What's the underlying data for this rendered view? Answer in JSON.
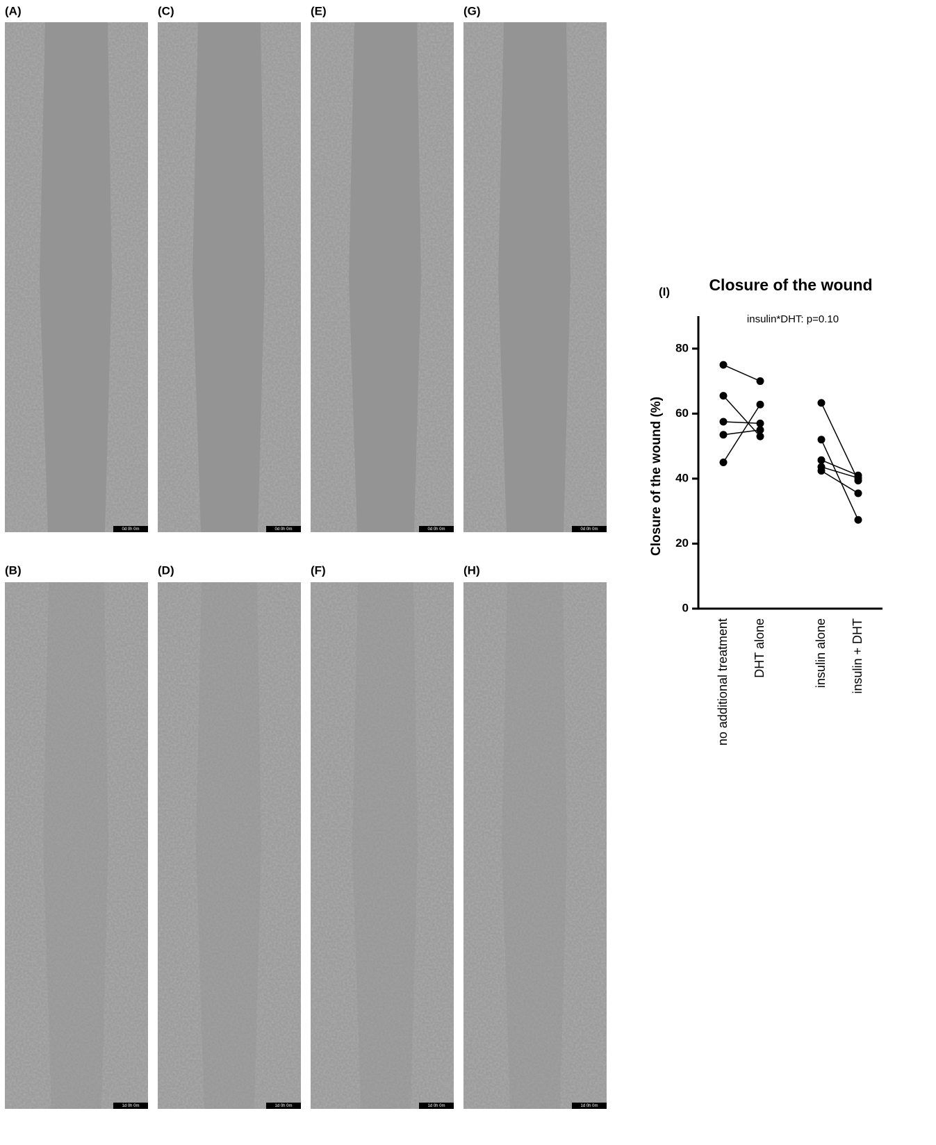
{
  "panels": [
    {
      "label": "(A)",
      "timestamp": "0d 0h 0m"
    },
    {
      "label": "(C)",
      "timestamp": "0d 0h 0m"
    },
    {
      "label": "(E)",
      "timestamp": "0d 0h 0m"
    },
    {
      "label": "(G)",
      "timestamp": "0d 0h 0m"
    },
    {
      "label": "(B)",
      "timestamp": "1d 0h 0m"
    },
    {
      "label": "(D)",
      "timestamp": "1d 0h 0m"
    },
    {
      "label": "(F)",
      "timestamp": "1d 0h 0m"
    },
    {
      "label": "(H)",
      "timestamp": "1d 0h 0m"
    }
  ],
  "chart_data": {
    "type": "paired-dot",
    "panel_label": "(I)",
    "title": "Closure of the wound",
    "annotation": "insulin*DHT: p=0.10",
    "ylabel": "Closure of the wound (%)",
    "categories": [
      "no additional treatment",
      "DHT alone",
      "insulin alone",
      "insulin + DHT"
    ],
    "series": [
      {
        "color": "#000000",
        "values": [
          75,
          70,
          63.3,
          39.4
        ]
      },
      {
        "color": "#000000",
        "values": [
          65.5,
          53,
          52,
          27.3
        ]
      },
      {
        "color": "#000000",
        "values": [
          57.5,
          57,
          45.7,
          41
        ]
      },
      {
        "color": "#000000",
        "values": [
          53.5,
          55,
          43.6,
          40.2
        ]
      },
      {
        "color": "#000000",
        "values": [
          45,
          62.8,
          42.4,
          35.5
        ]
      }
    ],
    "ylim": [
      0,
      90
    ],
    "yticks": [
      0,
      20,
      40,
      60,
      80
    ]
  }
}
